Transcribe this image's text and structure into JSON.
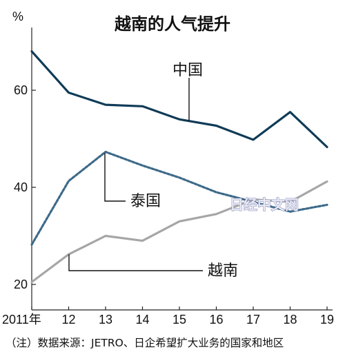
{
  "chart_data": {
    "type": "line",
    "title": "越南的人气提升",
    "ylabel": "%",
    "xlabel": "",
    "x": [
      "2011年",
      "12",
      "13",
      "14",
      "15",
      "16",
      "17",
      "18",
      "19"
    ],
    "ylim": [
      18,
      72
    ],
    "yticks": [
      20,
      40,
      60
    ],
    "grid": false,
    "series": [
      {
        "name": "中国",
        "color": "#0f3b57",
        "style": "solid",
        "values": [
          68,
          59.5,
          57,
          56.7,
          54,
          52.7,
          49.8,
          55.5,
          48.3
        ]
      },
      {
        "name": "泰国",
        "color": "#3d6a89",
        "style": "dashed",
        "values": [
          28.2,
          41.3,
          47.3,
          44.5,
          42,
          39,
          37,
          35,
          36.4
        ]
      },
      {
        "name": "越南",
        "color": "#a6a6a6",
        "style": "solid",
        "values": [
          20.5,
          26.2,
          30,
          29,
          33,
          34.5,
          37.5,
          37,
          41.2
        ]
      }
    ],
    "legend": "inline labels with leader lines",
    "source": "（注）数据来源：JETRO、日企希望扩大业务的国家和地区"
  },
  "watermark": "日经中文网"
}
